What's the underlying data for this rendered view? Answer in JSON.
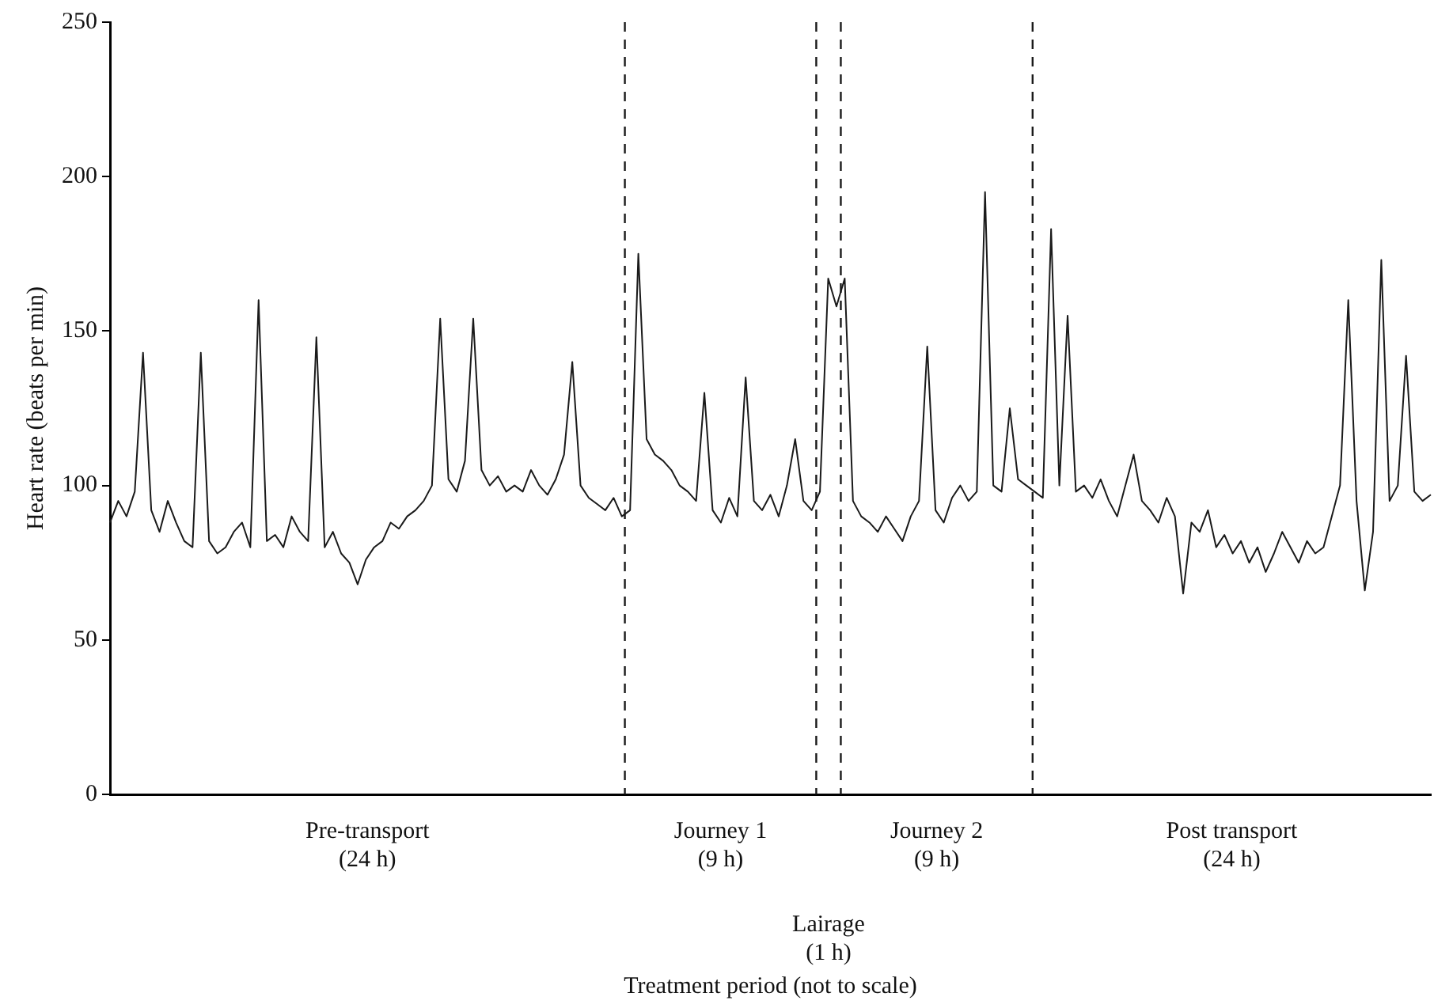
{
  "chart_data": {
    "type": "line",
    "ylabel": "Heart rate (beats per min)",
    "categories": [
      null,
      null,
      null,
      null,
      null,
      null,
      null,
      null,
      null,
      null,
      null,
      null,
      null,
      null,
      null,
      null,
      null,
      null,
      null,
      null,
      null,
      null,
      null,
      null,
      null,
      null,
      null,
      null,
      null,
      null,
      null,
      null,
      null,
      null,
      null,
      null,
      null,
      null,
      null,
      null,
      null,
      null,
      null,
      null,
      null,
      null,
      null,
      null,
      null,
      null,
      null,
      null,
      null,
      null,
      null,
      null,
      null,
      null,
      null,
      null,
      null,
      null,
      null,
      null,
      null,
      null,
      null,
      null,
      null,
      null,
      null,
      null,
      null,
      null,
      null,
      null,
      null,
      null,
      null,
      null,
      null,
      null,
      null,
      null,
      null,
      null,
      null,
      null,
      null,
      null,
      null,
      null,
      null,
      null,
      null,
      null,
      null,
      null,
      null,
      null,
      null,
      null,
      null,
      null,
      null,
      null,
      null,
      null,
      null,
      null,
      null,
      null,
      null,
      null,
      null,
      null,
      null,
      null,
      null,
      null,
      null,
      null,
      null,
      null,
      null,
      null,
      null,
      null,
      null,
      null,
      null,
      null,
      null,
      null,
      null,
      null,
      null,
      null,
      null,
      null,
      null,
      null,
      null,
      null,
      null,
      null,
      null,
      null,
      null,
      null,
      null,
      null,
      null,
      null,
      null,
      null,
      null,
      null,
      null,
      null,
      null
    ],
    "series": [
      {
        "color": "#1a1a1a",
        "values": [
          88,
          95,
          90,
          98,
          143,
          92,
          85,
          95,
          88,
          82,
          80,
          143,
          82,
          78,
          80,
          85,
          88,
          80,
          160,
          82,
          84,
          80,
          90,
          85,
          82,
          148,
          80,
          85,
          78,
          75,
          68,
          76,
          80,
          82,
          88,
          86,
          90,
          92,
          95,
          100,
          154,
          102,
          98,
          108,
          154,
          105,
          100,
          103,
          98,
          100,
          98,
          105,
          100,
          97,
          102,
          110,
          140,
          100,
          96,
          94,
          92,
          96,
          90,
          92,
          175,
          115,
          110,
          108,
          105,
          100,
          98,
          95,
          130,
          92,
          88,
          96,
          90,
          135,
          95,
          92,
          97,
          90,
          100,
          115,
          95,
          92,
          98,
          167,
          158,
          167,
          95,
          90,
          88,
          85,
          90,
          86,
          82,
          90,
          95,
          145,
          92,
          88,
          96,
          100,
          95,
          98,
          195,
          100,
          98,
          125,
          102,
          100,
          98,
          96,
          183,
          100,
          155,
          98,
          100,
          96,
          102,
          95,
          90,
          100,
          110,
          95,
          92,
          88,
          96,
          90,
          65,
          88,
          85,
          92,
          80,
          84,
          78,
          82,
          75,
          80,
          72,
          78,
          85,
          80,
          75,
          82,
          78,
          80,
          90,
          100,
          160,
          95,
          66,
          85,
          173,
          95,
          100,
          142,
          98,
          95,
          97
        ]
      }
    ],
    "ylim": [
      0,
      250
    ],
    "yticks": [
      0,
      50,
      100,
      150,
      200,
      250
    ],
    "marker": "none",
    "legend": false,
    "tick_labels": "y",
    "annotations": [
      "Pre-transport\n(24 h)",
      "Journey 1\n(9 h)",
      "Lairage\n(1 h)",
      "Journey 2\n(9 h)",
      "Post transport\n(24 h)",
      "Treatment period (not to scale)"
    ]
  }
}
